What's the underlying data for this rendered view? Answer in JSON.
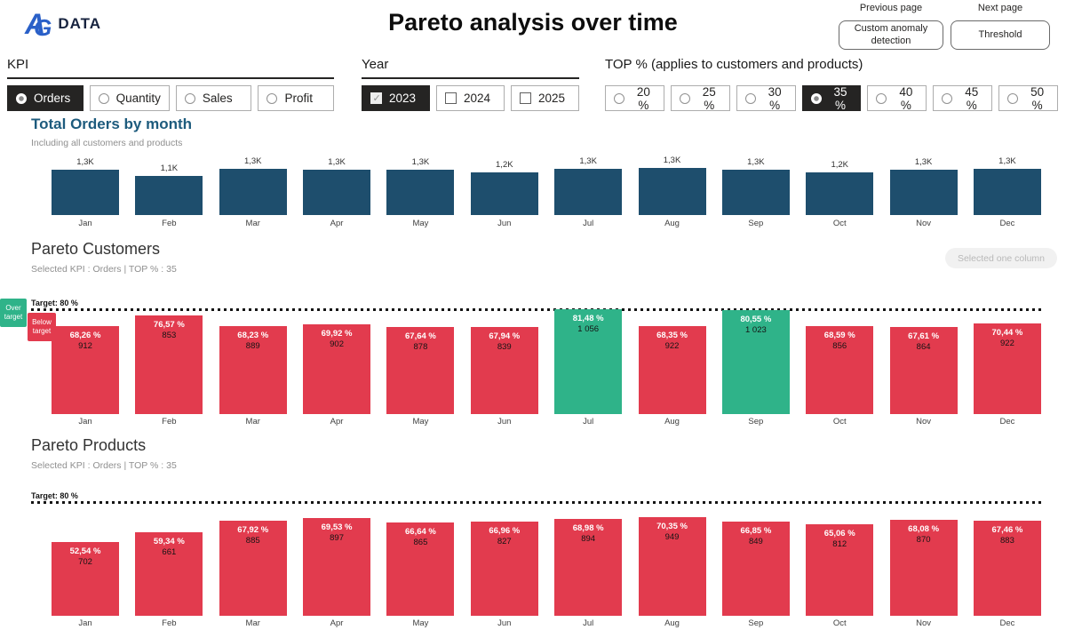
{
  "header": {
    "logo": {
      "a": "A",
      "g": "G",
      "text": "DATA"
    },
    "title": "Pareto analysis over time",
    "previous_page_label": "Previous page",
    "next_page_label": "Next page",
    "custom_anomaly_button": "Custom anomaly detection",
    "threshold_button": "Threshold"
  },
  "filters": {
    "kpi": {
      "label": "KPI",
      "control": "radio",
      "options": [
        "Orders",
        "Quantity",
        "Sales",
        "Profit"
      ],
      "selected": "Orders"
    },
    "year": {
      "label": "Year",
      "control": "checkbox",
      "options": [
        "2023",
        "2024",
        "2025"
      ],
      "selected": "2023"
    },
    "top_pct": {
      "label": "TOP % (applies to customers and products)",
      "control": "radio",
      "options": [
        "20 %",
        "25 %",
        "30 %",
        "35 %",
        "40 %",
        "45 %",
        "50 %"
      ],
      "selected": "35 %"
    }
  },
  "colors": {
    "bar_blue": "#1e4e6d",
    "bar_red": "#e23b4e",
    "bar_green": "#2fb389",
    "title_blue": "#1d5b7d",
    "selected_bg": "#252423"
  },
  "chart_data": [
    {
      "id": "total_orders_by_month",
      "type": "bar",
      "title": "Total Orders by month",
      "subtitle": "Including all customers and products",
      "categories": [
        "Jan",
        "Feb",
        "Mar",
        "Apr",
        "May",
        "Jun",
        "Jul",
        "Aug",
        "Sep",
        "Oct",
        "Nov",
        "Dec"
      ],
      "values": [
        1280,
        1100,
        1290,
        1270,
        1280,
        1190,
        1290,
        1320,
        1270,
        1200,
        1280,
        1290
      ],
      "value_labels": [
        "1,3K",
        "1,1K",
        "1,3K",
        "1,3K",
        "1,3K",
        "1,2K",
        "1,3K",
        "1,3K",
        "1,3K",
        "1,2K",
        "1,3K",
        "1,3K"
      ],
      "bar_color": "#1e4e6d",
      "ylim": [
        0,
        1400
      ],
      "grid": false,
      "legend": false
    },
    {
      "id": "pareto_customers",
      "type": "bar",
      "title": "Pareto Customers",
      "subtitle": "Selected KPI : Orders | TOP % : 35",
      "selected_column_button": "Selected one column",
      "target_pct": 80,
      "target_label": "Target: 80 %",
      "legend_over": "Over target",
      "legend_below": "Below target",
      "categories": [
        "Jan",
        "Feb",
        "Mar",
        "Apr",
        "May",
        "Jun",
        "Jul",
        "Aug",
        "Sep",
        "Oct",
        "Nov",
        "Dec"
      ],
      "series": [
        {
          "name": "share_pct",
          "values": [
            68.26,
            76.57,
            68.23,
            69.92,
            67.64,
            67.94,
            81.48,
            68.35,
            80.55,
            68.59,
            67.61,
            70.44
          ]
        },
        {
          "name": "orders",
          "values": [
            912,
            853,
            889,
            902,
            878,
            839,
            1056,
            922,
            1023,
            856,
            864,
            922
          ]
        }
      ],
      "pct_labels": [
        "68,26 %",
        "76,57 %",
        "68,23 %",
        "69,92 %",
        "67,64 %",
        "67,94 %",
        "81,48 %",
        "68,35 %",
        "80,55 %",
        "68,59 %",
        "67,61 %",
        "70,44 %"
      ],
      "value_labels": [
        "912",
        "853",
        "889",
        "902",
        "878",
        "839",
        "1 056",
        "922",
        "1 023",
        "856",
        "864",
        "922"
      ],
      "over_target_color": "#2fb389",
      "below_target_color": "#e23b4e",
      "grid": false,
      "legend": true
    },
    {
      "id": "pareto_products",
      "type": "bar",
      "title": "Pareto Products",
      "subtitle": "Selected KPI : Orders | TOP % : 35",
      "target_pct": 80,
      "target_label": "Target: 80 %",
      "categories": [
        "Jan",
        "Feb",
        "Mar",
        "Apr",
        "May",
        "Jun",
        "Jul",
        "Aug",
        "Sep",
        "Oct",
        "Nov",
        "Dec"
      ],
      "series": [
        {
          "name": "share_pct",
          "values": [
            52.54,
            59.34,
            67.92,
            69.53,
            66.64,
            66.96,
            68.98,
            70.35,
            66.85,
            65.06,
            68.08,
            67.46
          ]
        },
        {
          "name": "orders",
          "values": [
            702,
            661,
            885,
            897,
            865,
            827,
            894,
            949,
            849,
            812,
            870,
            883
          ]
        }
      ],
      "pct_labels": [
        "52,54 %",
        "59,34 %",
        "67,92 %",
        "69,53 %",
        "66,64 %",
        "66,96 %",
        "68,98 %",
        "70,35 %",
        "66,85 %",
        "65,06 %",
        "68,08 %",
        "67,46 %"
      ],
      "value_labels": [
        "702",
        "661",
        "885",
        "897",
        "865",
        "827",
        "894",
        "949",
        "849",
        "812",
        "870",
        "883"
      ],
      "over_target_color": "#2fb389",
      "below_target_color": "#e23b4e",
      "grid": false,
      "legend": false
    }
  ]
}
